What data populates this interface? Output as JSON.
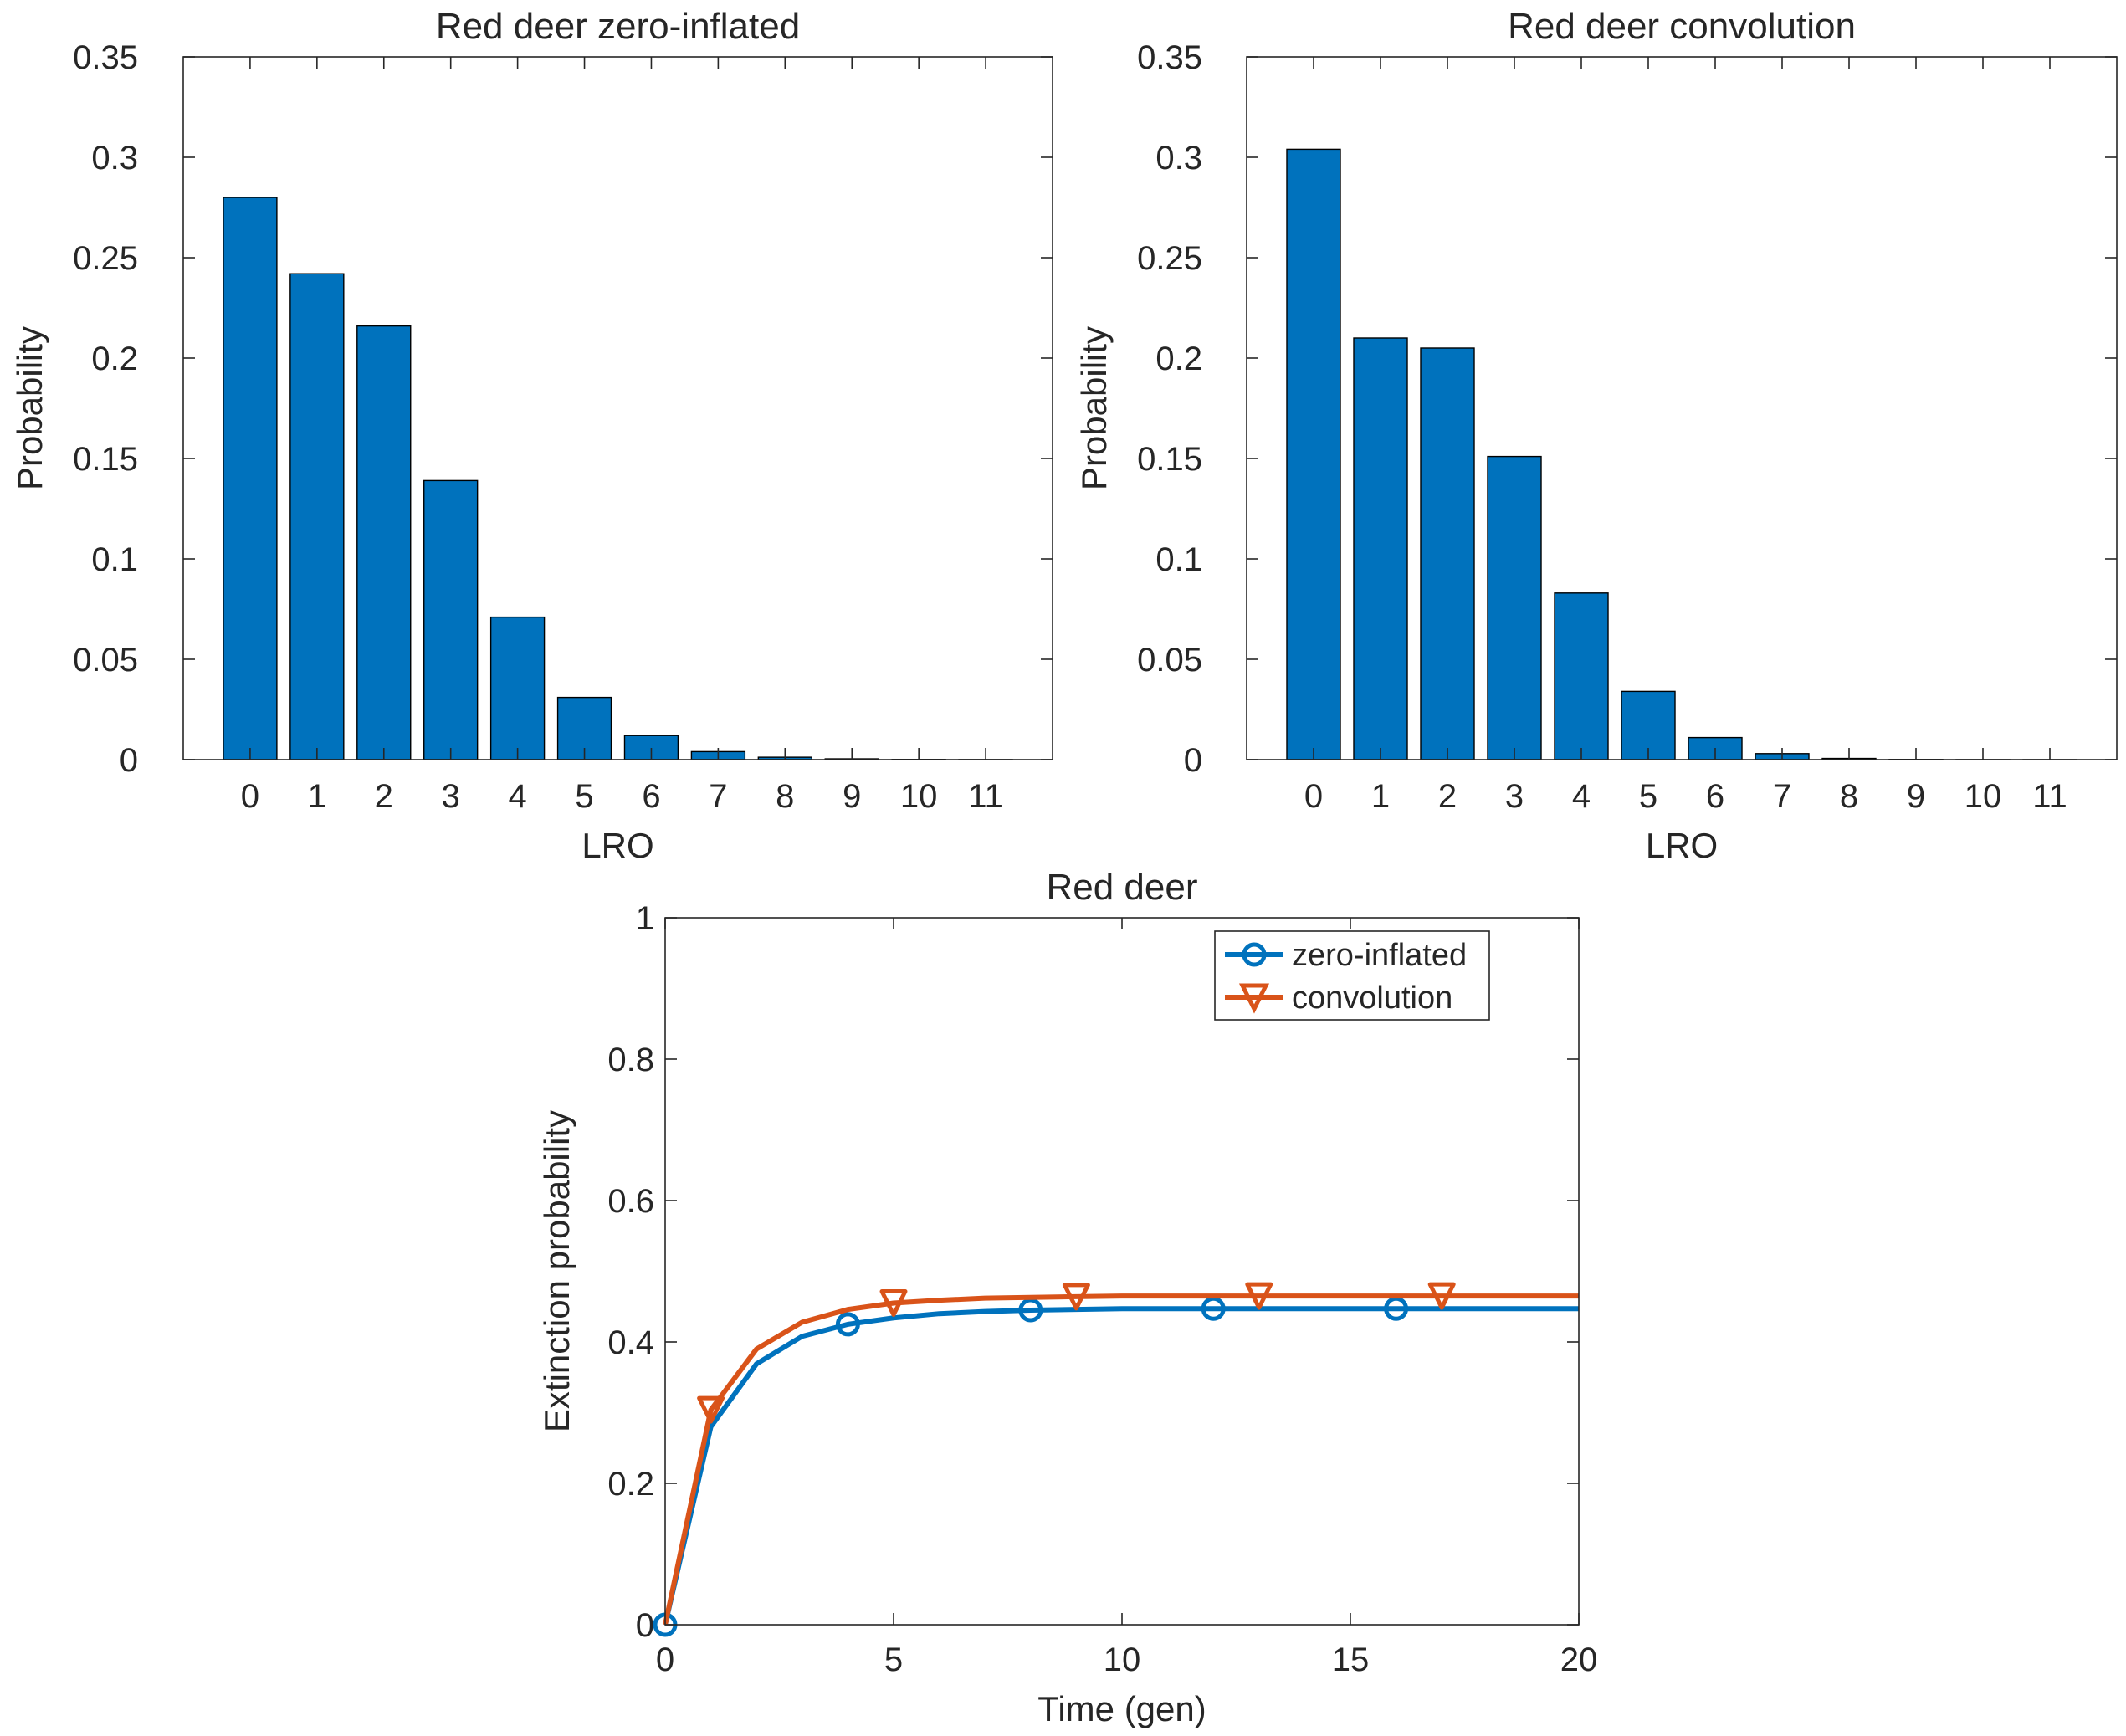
{
  "colors": {
    "bar": "#0072BD",
    "series1": "#0072BD",
    "series2": "#D95319",
    "axis": "#262626"
  },
  "chart_data": [
    {
      "id": "zero-inflated",
      "type": "bar",
      "title": "Red deer zero-inflated",
      "xlabel": "LRO",
      "ylabel": "Probability",
      "categories": [
        "0",
        "1",
        "2",
        "3",
        "4",
        "5",
        "6",
        "7",
        "8",
        "9",
        "10",
        "11"
      ],
      "values": [
        0.28,
        0.242,
        0.216,
        0.139,
        0.071,
        0.031,
        0.012,
        0.004,
        0.0012,
        0.0004,
        0.0001,
        3e-05
      ],
      "ylim": [
        0,
        0.35
      ],
      "yticks": [
        "0",
        "0.05",
        "0.1",
        "0.15",
        "0.2",
        "0.25",
        "0.3",
        "0.35"
      ],
      "xlim": [
        -1,
        12
      ]
    },
    {
      "id": "convolution",
      "type": "bar",
      "title": "Red deer convolution",
      "xlabel": "LRO",
      "ylabel": "Probability",
      "categories": [
        "0",
        "1",
        "2",
        "3",
        "4",
        "5",
        "6",
        "7",
        "8",
        "9",
        "10",
        "11"
      ],
      "values": [
        0.304,
        0.21,
        0.205,
        0.151,
        0.083,
        0.034,
        0.011,
        0.003,
        0.0006,
        0.0001,
        2e-05,
        5e-06
      ],
      "ylim": [
        0,
        0.35
      ],
      "yticks": [
        "0",
        "0.05",
        "0.1",
        "0.15",
        "0.2",
        "0.25",
        "0.3",
        "0.35"
      ],
      "xlim": [
        -1,
        12
      ]
    },
    {
      "id": "extinction",
      "type": "line",
      "title": "Red deer",
      "xlabel": "Time (gen)",
      "ylabel": "Extinction probability",
      "xlim": [
        0,
        20
      ],
      "ylim": [
        0,
        1
      ],
      "xticks": [
        "0",
        "5",
        "10",
        "15",
        "20"
      ],
      "yticks": [
        "0",
        "0.2",
        "0.4",
        "0.6",
        "0.8",
        "1"
      ],
      "legend_position": "top-right",
      "series": [
        {
          "name": "zero-inflated",
          "marker": "circle",
          "x": [
            0,
            1,
            2,
            3,
            4,
            5,
            6,
            7,
            8,
            9,
            10,
            11,
            12,
            13,
            14,
            15,
            16,
            17,
            18,
            19,
            20
          ],
          "y": [
            0,
            0.28,
            0.369,
            0.408,
            0.425,
            0.434,
            0.44,
            0.443,
            0.445,
            0.446,
            0.447,
            0.447,
            0.447,
            0.447,
            0.447,
            0.447,
            0.447,
            0.447,
            0.447,
            0.447,
            0.447
          ],
          "marker_x": [
            0,
            4,
            8,
            12,
            16
          ]
        },
        {
          "name": "convolution",
          "marker": "triangle-down",
          "x": [
            0,
            1,
            2,
            3,
            4,
            5,
            6,
            7,
            8,
            9,
            10,
            11,
            12,
            13,
            14,
            15,
            16,
            17,
            18,
            19,
            20
          ],
          "y": [
            0,
            0.304,
            0.39,
            0.428,
            0.446,
            0.455,
            0.459,
            0.462,
            0.463,
            0.464,
            0.465,
            0.465,
            0.465,
            0.465,
            0.465,
            0.465,
            0.465,
            0.465,
            0.465,
            0.465,
            0.465
          ],
          "marker_x": [
            1,
            5,
            9,
            13,
            17
          ]
        }
      ]
    }
  ]
}
